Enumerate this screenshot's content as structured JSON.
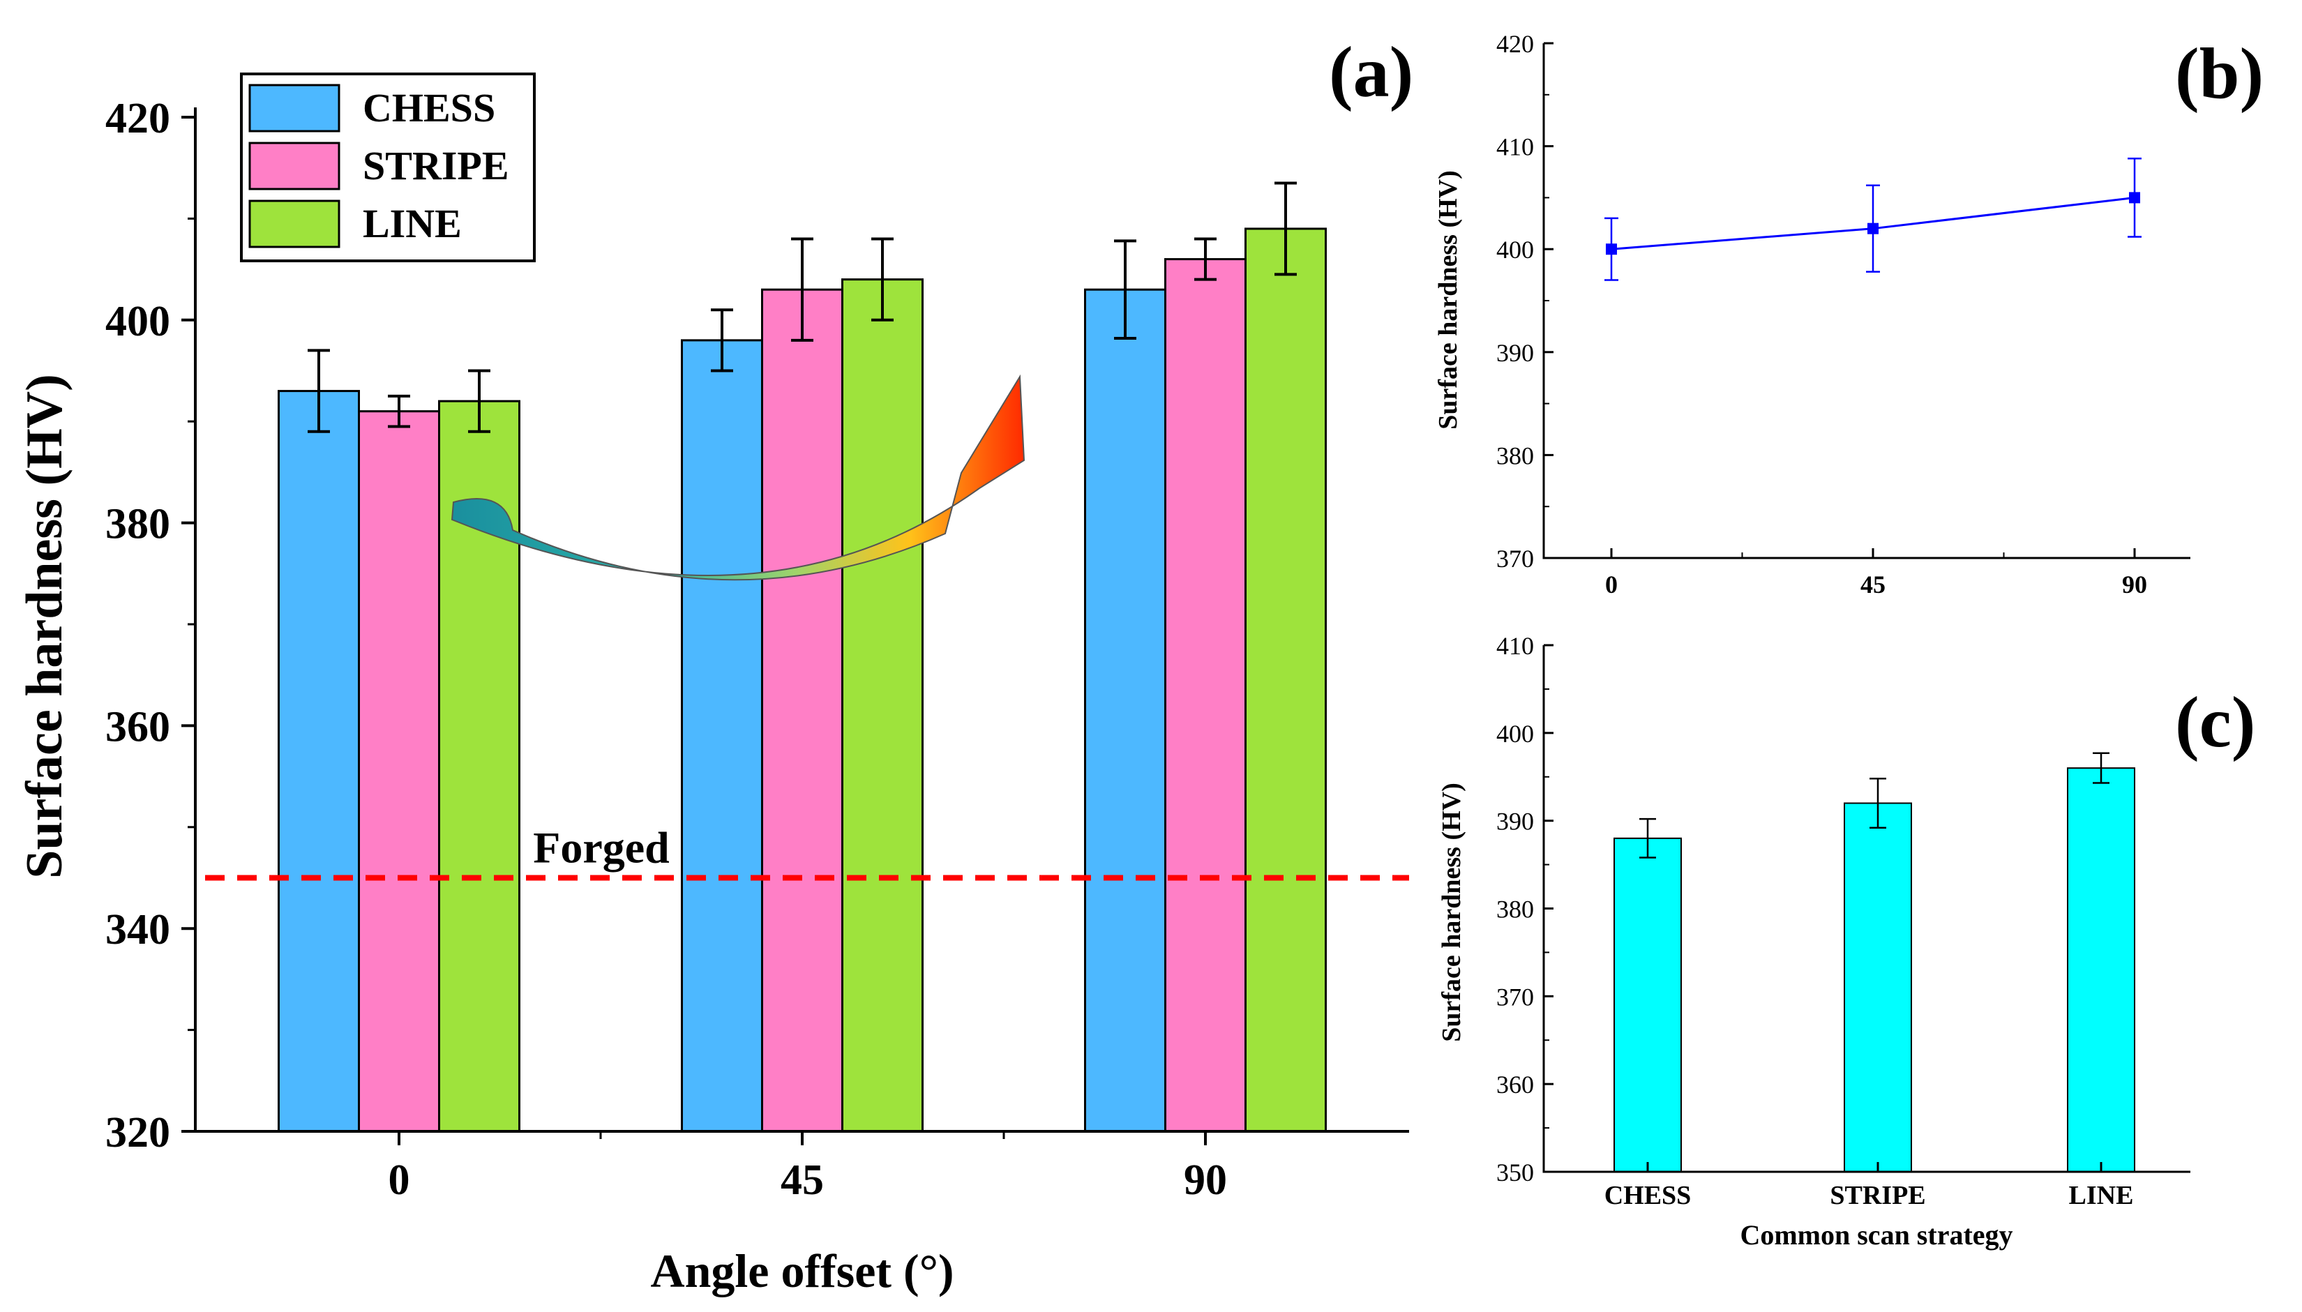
{
  "chart_data": [
    {
      "panel": "(a)",
      "type": "bar",
      "title": "",
      "xlabel": "Angle offset (°)",
      "ylabel": "Surface hardness (HV)",
      "categories": [
        "0",
        "45",
        "90"
      ],
      "ylim": [
        320,
        420
      ],
      "yticks": [
        "320",
        "340",
        "360",
        "380",
        "400",
        "420"
      ],
      "series": [
        {
          "name": "CHESS",
          "color": "#4db8ff",
          "values": [
            393,
            398,
            403
          ],
          "errors": [
            4,
            3,
            4.8
          ]
        },
        {
          "name": "STRIPE",
          "color": "#ff7fc6",
          "values": [
            391,
            403,
            406
          ],
          "errors": [
            1.5,
            5,
            2
          ]
        },
        {
          "name": "LINE",
          "color": "#9ee33c",
          "values": [
            392,
            404,
            409
          ],
          "errors": [
            3,
            4,
            4.5
          ]
        }
      ],
      "reference_line": {
        "label": "Forged",
        "value": 345,
        "color": "#ff0000"
      },
      "legend_position": "top-left"
    },
    {
      "panel": "(b)",
      "type": "line",
      "xlabel": "",
      "ylabel": "Surface hardness (HV)",
      "x": [
        0,
        45,
        90
      ],
      "xticks": [
        "0",
        "45",
        "90"
      ],
      "values": [
        400,
        402,
        405
      ],
      "errors": [
        3,
        4.2,
        3.8
      ],
      "ylim": [
        370,
        420
      ],
      "yticks": [
        "370",
        "380",
        "390",
        "400",
        "410",
        "420"
      ],
      "color": "#0000ff"
    },
    {
      "panel": "(c)",
      "type": "bar",
      "xlabel": "Common scan strategy",
      "ylabel": "Surface hardness (HV)",
      "categories": [
        "CHESS",
        "STRIPE",
        "LINE"
      ],
      "values": [
        388,
        392,
        396
      ],
      "errors": [
        2.2,
        2.8,
        1.7
      ],
      "ylim": [
        350,
        410
      ],
      "yticks": [
        "350",
        "360",
        "370",
        "380",
        "390",
        "400",
        "410"
      ],
      "color": "#00ffff"
    }
  ]
}
